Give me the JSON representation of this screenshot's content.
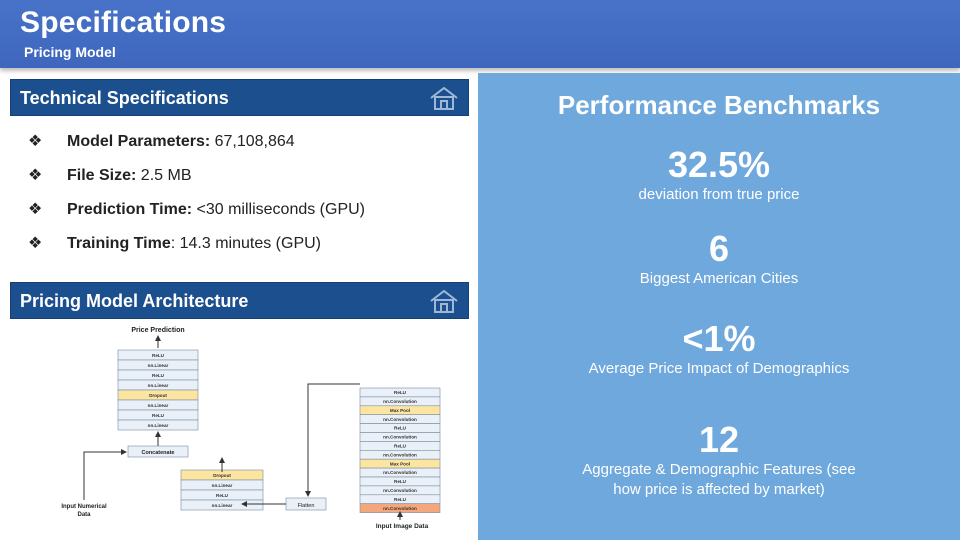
{
  "header": {
    "title": "Specifications",
    "subtitle": "Pricing Model"
  },
  "tech": {
    "title": "Technical Specifications",
    "items": [
      {
        "key": "Model Parameters:",
        "value": " 67,108,864"
      },
      {
        "key": "File Size:",
        "value": " 2.5 MB"
      },
      {
        "key": "Prediction Time:",
        "value": " <30 milliseconds (GPU)"
      },
      {
        "key": "Training Time",
        "value": ": 14.3 minutes (GPU)"
      }
    ]
  },
  "arch": {
    "title": "Pricing Model Architecture",
    "price_prediction": "Price Prediction",
    "concatenate": "Concatenate",
    "flatten": "Flatten",
    "input_numerical": "Input Numerical",
    "input_numerical_2": "Data",
    "input_image": "Input Image Data",
    "head_layers": [
      "ReLU",
      "nn.Linear",
      "ReLU",
      "nn.Linear",
      "Dropout",
      "nn.Linear",
      "ReLU",
      "nn.Linear"
    ],
    "num_layers": [
      "Dropout",
      "nn.Linear",
      "ReLU",
      "nn.Linear"
    ],
    "cnn_layers": [
      "ReLU",
      "nn.Convolution",
      "Max Pool",
      "nn.Convolution",
      "ReLU",
      "nn.Convolution",
      "ReLU",
      "nn.Convolution",
      "Max Pool",
      "nn.Convolution",
      "ReLU",
      "nn.Convolution",
      "ReLU",
      "nn.Convolution"
    ]
  },
  "benchmarks": {
    "title": "Performance Benchmarks",
    "stats": [
      {
        "value": "32.5%",
        "label": "deviation from true price"
      },
      {
        "value": "6",
        "label": "Biggest American Cities"
      },
      {
        "value": "<1%",
        "label": "Average Price Impact of Demographics"
      },
      {
        "value": "12",
        "label": "Aggregate & Demographic Features (see",
        "label2": "how price is affected by market)"
      }
    ]
  },
  "colors": {
    "header": "#4470c4",
    "section_bar": "#1c4f8d",
    "bench_bg": "#6fa8dc",
    "layer_dropout": "#fce5a0",
    "layer_maxpool": "#fce5a0",
    "layer_input_conv": "#f4a77a",
    "layer_default": "#eaf0f8"
  },
  "icons": {
    "section_icon": "home-icon",
    "bullet": "diamond-bullet-icon"
  }
}
